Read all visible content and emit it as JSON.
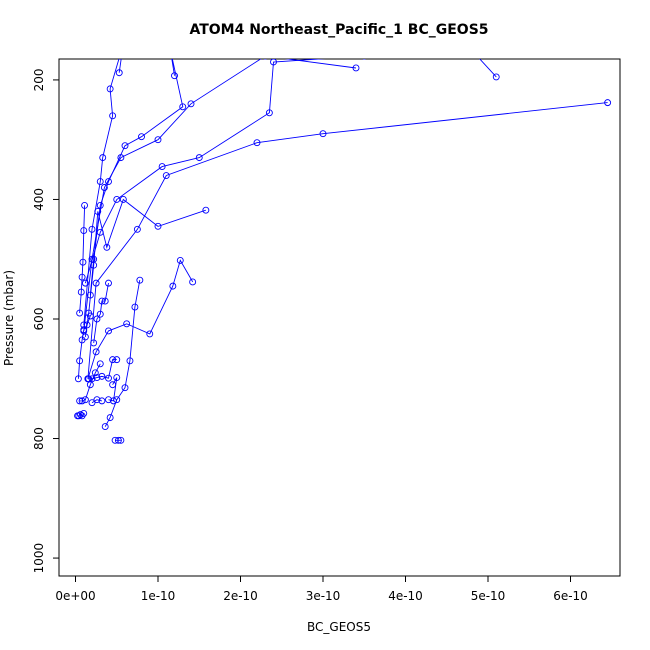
{
  "chart_data": {
    "type": "line",
    "title": "ATOM4 Northeast_Pacific_1 BC_GEOS5",
    "xlabel": "BC_GEOS5",
    "ylabel": "Pressure (mbar)",
    "xlim": [
      -2e-11,
      6.6e-10
    ],
    "ylim": [
      1030,
      165
    ],
    "y_reversed": true,
    "grid": false,
    "line_color": "#0000ff",
    "marker": "open-circle",
    "x_ticks": [
      {
        "value": 0,
        "label": "0e+00"
      },
      {
        "value": 1e-10,
        "label": "1e-10"
      },
      {
        "value": 2e-10,
        "label": "2e-10"
      },
      {
        "value": 3e-10,
        "label": "3e-10"
      },
      {
        "value": 4e-10,
        "label": "4e-10"
      },
      {
        "value": 5e-10,
        "label": "5e-10"
      },
      {
        "value": 6e-10,
        "label": "6e-10"
      }
    ],
    "y_ticks": [
      {
        "value": 200,
        "label": "200"
      },
      {
        "value": 400,
        "label": "400"
      },
      {
        "value": 600,
        "label": "600"
      },
      {
        "value": 800,
        "label": "800"
      },
      {
        "value": 1000,
        "label": "1000"
      }
    ],
    "profiles": [
      {
        "x": [
          3.4e-10,
          2.3e-10,
          1.4e-10,
          1e-10,
          5.5e-11,
          3.5e-11,
          2e-11,
          1e-11
        ],
        "y": [
          180,
          160,
          240,
          300,
          330,
          380,
          500,
          620
        ]
      },
      {
        "x": [
          6.45e-10,
          3e-10,
          2.2e-10,
          1.1e-10,
          7.5e-11,
          2.5e-11,
          1.5e-11
        ],
        "y": [
          238,
          290,
          305,
          360,
          450,
          540,
          700
        ]
      },
      {
        "x": [
          5.1e-10,
          4.8e-10,
          3.5e-10,
          2.4e-10,
          2.35e-10,
          1.5e-10,
          1.05e-10,
          5e-11,
          3e-11,
          1.2e-11
        ],
        "y": [
          195,
          150,
          160,
          170,
          255,
          330,
          345,
          400,
          455,
          540
        ]
      },
      {
        "x": [
          1.2e-10,
          1.15e-10,
          1.3e-10,
          8e-11,
          6e-11,
          4e-11,
          3e-11,
          2.2e-11,
          1.8e-11
        ],
        "y": [
          193,
          150,
          245,
          295,
          310,
          370,
          410,
          500,
          560
        ]
      },
      {
        "x": [
          5.3e-11,
          5.8e-11,
          4.2e-11,
          4.5e-11,
          3.3e-11,
          3e-11,
          2e-11,
          1e-11
        ],
        "y": [
          188,
          140,
          215,
          260,
          330,
          370,
          450,
          610
        ]
      },
      {
        "x": [
          1.58e-10,
          1e-10,
          5.8e-11,
          3.8e-11,
          2.7e-11,
          2.2e-11,
          1.6e-11,
          1.2e-11
        ],
        "y": [
          418,
          445,
          400,
          480,
          420,
          510,
          590,
          630
        ]
      },
      {
        "x": [
          1.42e-10,
          1.27e-10,
          1.18e-10,
          9e-11,
          6.2e-11,
          4e-11,
          2.5e-11,
          1.5e-11
        ],
        "y": [
          538,
          502,
          545,
          625,
          608,
          620,
          655,
          700
        ]
      },
      {
        "x": [
          7.8e-11,
          7.2e-11,
          6.6e-11,
          6e-11,
          5e-11,
          4.2e-11,
          3.6e-11
        ],
        "y": [
          535,
          580,
          670,
          715,
          735,
          765,
          780
        ]
      },
      {
        "x": [
          4e-11,
          3.6e-11,
          3.2e-11,
          3e-11,
          2.6e-11,
          2.2e-11
        ],
        "y": [
          540,
          570,
          570,
          592,
          600,
          640
        ]
      },
      {
        "x": [
          1.1e-11,
          1e-11,
          9e-12,
          8e-12,
          7e-12,
          5e-12
        ],
        "y": [
          410,
          452,
          505,
          530,
          555,
          590
        ]
      },
      {
        "x": [
          3.5e-12,
          5e-12,
          8e-12,
          1e-11,
          1.4e-11,
          1.8e-11
        ],
        "y": [
          700,
          670,
          635,
          618,
          610,
          595
        ]
      },
      {
        "x": [
          1.6e-11,
          2e-11,
          2.6e-11,
          3.2e-11,
          4e-11,
          4.5e-11,
          5e-11
        ],
        "y": [
          700,
          700,
          698,
          696,
          699,
          668,
          668
        ]
      },
      {
        "x": [
          5e-12,
          8e-12,
          1.2e-11,
          1.8e-11,
          2.4e-11,
          3e-11
        ],
        "y": [
          737,
          737,
          735,
          710,
          690,
          675
        ]
      },
      {
        "x": [
          2.5e-12,
          4e-12,
          6e-12,
          8e-12,
          1e-11
        ],
        "y": [
          762,
          762,
          760,
          762,
          758
        ]
      },
      {
        "x": [
          4.8e-11,
          5.2e-11,
          5.5e-11
        ],
        "y": [
          803,
          803,
          803
        ]
      },
      {
        "x": [
          2e-11,
          2.6e-11,
          3.2e-11
        ],
        "y": [
          740,
          735,
          737
        ]
      },
      {
        "x": [
          4.5e-11,
          5e-11,
          4.6e-11,
          4e-11
        ],
        "y": [
          710,
          698,
          737,
          735
        ]
      }
    ]
  }
}
